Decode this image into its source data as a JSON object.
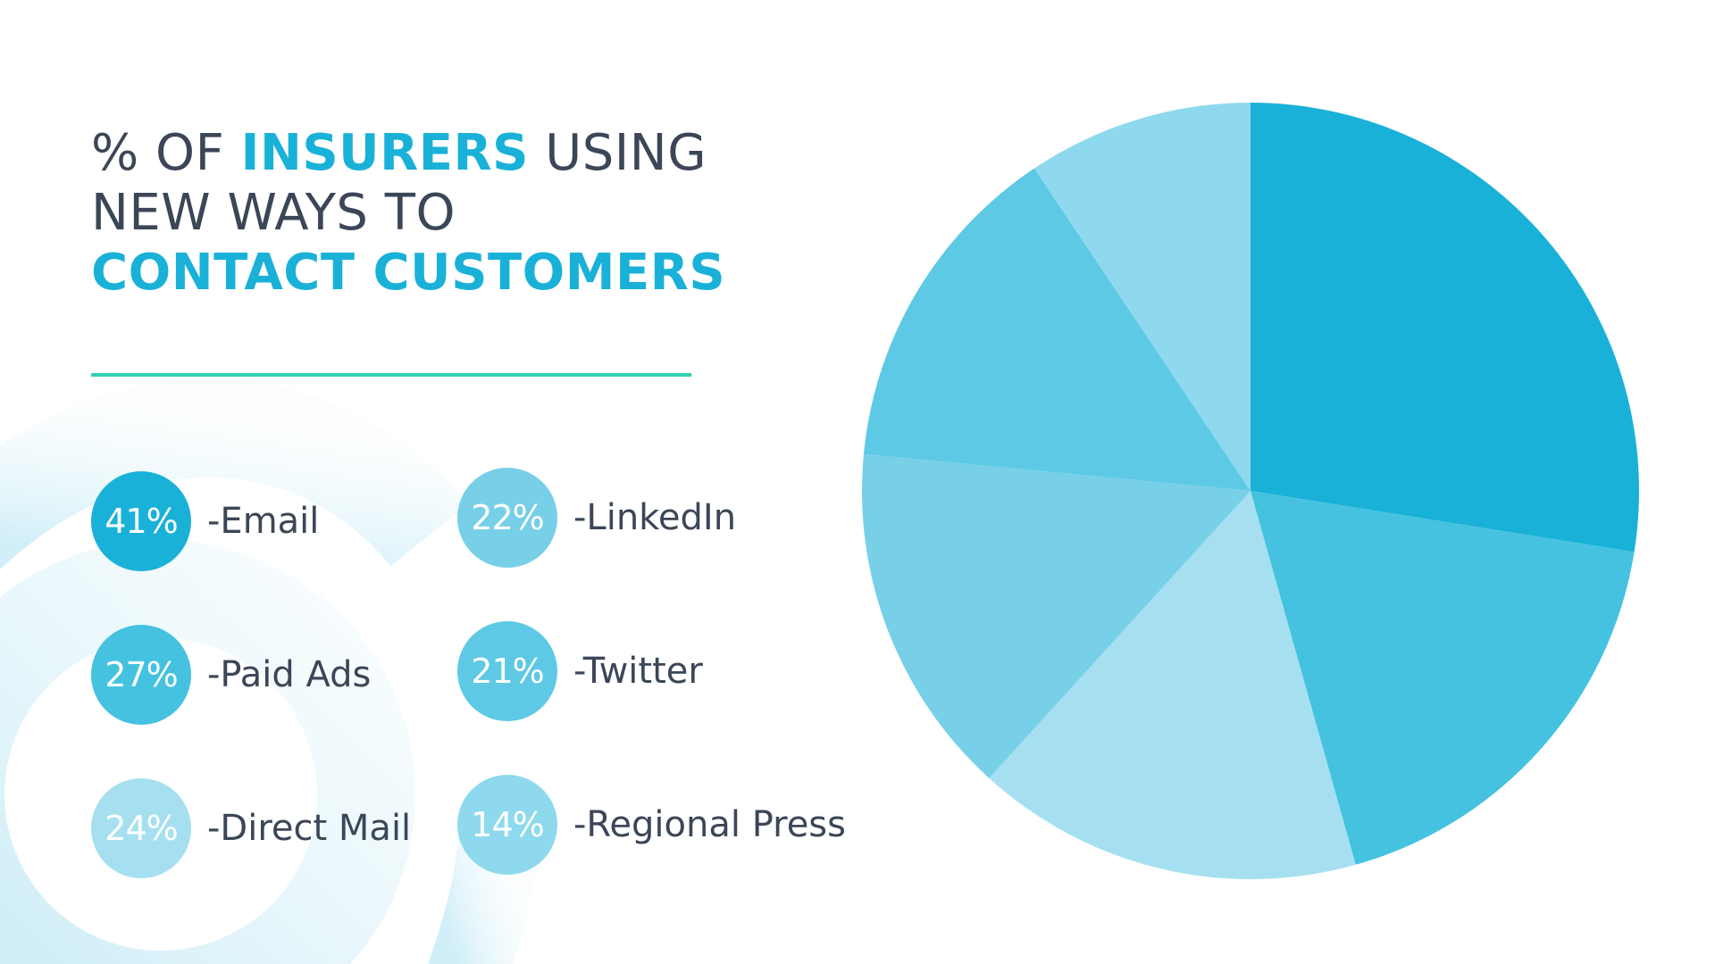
{
  "title": {
    "segments": [
      {
        "text": "% of ",
        "highlight": false
      },
      {
        "text": "insurers",
        "highlight": true
      },
      {
        "text": " using new ways to ",
        "highlight": false
      },
      {
        "text": "contact customers",
        "highlight": true
      }
    ]
  },
  "colors": {
    "title_text": "#3b4657",
    "highlight": "#19b1d8",
    "divider": "#2fd0b0"
  },
  "chart_data": {
    "type": "pie",
    "title": "% of insurers using new ways to contact customers",
    "unit": "%",
    "start_angle_deg": 0,
    "direction": "clockwise",
    "slices": [
      {
        "label": "Email",
        "value": 41,
        "value_text": "41%",
        "legend_text": "-Email",
        "color": "#19b1d8"
      },
      {
        "label": "Paid Ads",
        "value": 27,
        "value_text": "27%",
        "legend_text": "-Paid Ads",
        "color": "#44c2e0"
      },
      {
        "label": "Direct Mail",
        "value": 24,
        "value_text": "24%",
        "legend_text": "-Direct Mail",
        "color": "#a6e0f0"
      },
      {
        "label": "LinkedIn",
        "value": 22,
        "value_text": "22%",
        "legend_text": "-LinkedIn",
        "color": "#77d0e8"
      },
      {
        "label": "Twitter",
        "value": 21,
        "value_text": "21%",
        "legend_text": "-Twitter",
        "color": "#5dc9e5"
      },
      {
        "label": "Regional Press",
        "value": 14,
        "value_text": "14%",
        "legend_text": "-Regional Press",
        "color": "#8ed9ee"
      }
    ]
  }
}
